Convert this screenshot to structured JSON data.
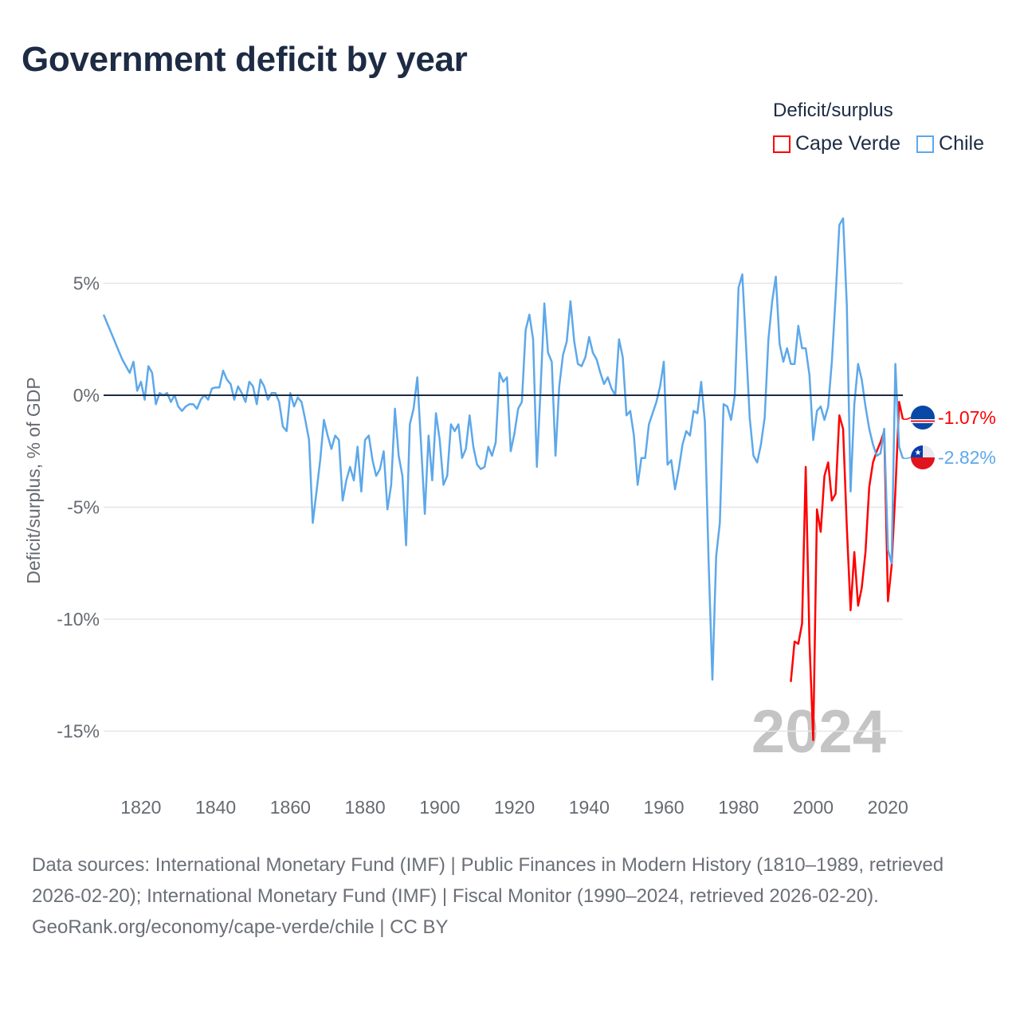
{
  "title": "Government deficit by year",
  "legend": {
    "title": "Deficit/surplus",
    "items": [
      {
        "label": "Cape Verde",
        "color": "#ff0000"
      },
      {
        "label": "Chile",
        "color": "#5da8ea"
      }
    ]
  },
  "footer": {
    "sources": "Data sources: International Monetary Fund (IMF) | Public Finances in Modern History (1810–1989, retrieved 2026-02-20); International Monetary Fund (IMF) | Fiscal Monitor (1990–2024, retrieved 2026-02-20).",
    "credit": "GeoRank.org/economy/cape-verde/chile | CC BY"
  },
  "chart_data": {
    "type": "line",
    "title": "Government deficit by year",
    "xlabel": "",
    "ylabel": "Deficit/surplus, % of GDP",
    "xlim": [
      1810,
      2024
    ],
    "ylim": [
      -17,
      8.5
    ],
    "xticks": [
      1820,
      1840,
      1860,
      1880,
      1900,
      1920,
      1940,
      1960,
      1980,
      2000,
      2020
    ],
    "yticks": [
      5,
      0,
      -5,
      -10,
      -15
    ],
    "ytick_labels": [
      "5%",
      "0%",
      "-5%",
      "-10%",
      "-15%"
    ],
    "year_watermark": "2024",
    "grid": true,
    "legend_position": "top-right",
    "series": [
      {
        "name": "Cape Verde",
        "color": "#ff0000",
        "start_year": 1994,
        "end_label": "-1.07%",
        "values": [
          -12.8,
          -11.0,
          -11.1,
          -10.2,
          -3.2,
          -11.0,
          -15.4,
          -5.1,
          -6.1,
          -3.6,
          -3.0,
          -4.7,
          -4.4,
          -0.9,
          -1.5,
          -5.9,
          -9.6,
          -7.0,
          -9.4,
          -8.6,
          -7.0,
          -4.1,
          -3.0,
          -2.5,
          -2.1,
          -1.6,
          -9.2,
          -7.6,
          -4.3,
          -0.3,
          -1.07
        ]
      },
      {
        "name": "Chile",
        "color": "#5da8ea",
        "start_year": 1810,
        "end_label": "-2.82%",
        "values": [
          3.6,
          3.2,
          2.8,
          2.4,
          2.0,
          1.6,
          1.3,
          1.0,
          1.5,
          0.2,
          0.6,
          -0.2,
          1.3,
          1.0,
          -0.4,
          0.1,
          0.0,
          0.1,
          -0.3,
          0.0,
          -0.5,
          -0.7,
          -0.5,
          -0.4,
          -0.4,
          -0.6,
          -0.2,
          0.0,
          -0.2,
          0.3,
          0.35,
          0.35,
          1.1,
          0.7,
          0.5,
          -0.2,
          0.4,
          0.1,
          -0.3,
          0.6,
          0.4,
          -0.4,
          0.7,
          0.4,
          -0.2,
          0.1,
          0.1,
          -0.3,
          -1.4,
          -1.6,
          0.1,
          -0.5,
          -0.1,
          -0.3,
          -1.1,
          -2.0,
          -5.7,
          -4.3,
          -2.9,
          -1.1,
          -1.8,
          -2.4,
          -1.8,
          -2.0,
          -4.7,
          -3.8,
          -3.2,
          -3.8,
          -2.3,
          -4.3,
          -2.0,
          -1.8,
          -2.9,
          -3.6,
          -3.3,
          -2.5,
          -5.1,
          -4.0,
          -0.6,
          -2.7,
          -3.6,
          -6.7,
          -1.3,
          -0.6,
          0.8,
          -2.2,
          -5.3,
          -1.8,
          -3.8,
          -0.8,
          -2.0,
          -4.0,
          -3.6,
          -1.3,
          -1.6,
          -1.3,
          -2.8,
          -2.4,
          -0.9,
          -2.3,
          -3.1,
          -3.3,
          -3.2,
          -2.3,
          -2.7,
          -2.1,
          1.0,
          0.6,
          0.8,
          -2.5,
          -1.7,
          -0.6,
          -0.3,
          2.9,
          3.6,
          2.5,
          -3.2,
          0.3,
          4.1,
          1.9,
          1.5,
          -2.7,
          0.4,
          1.8,
          2.4,
          4.2,
          2.4,
          1.4,
          1.3,
          1.7,
          2.6,
          1.9,
          1.6,
          1.0,
          0.5,
          0.8,
          0.3,
          0.0,
          2.5,
          1.7,
          -0.9,
          -0.7,
          -1.8,
          -4.0,
          -2.8,
          -2.8,
          -1.3,
          -0.8,
          -0.3,
          0.4,
          1.5,
          -3.1,
          -2.9,
          -4.2,
          -3.3,
          -2.2,
          -1.6,
          -1.8,
          -0.7,
          -0.8,
          0.6,
          -1.2,
          -7.5,
          -12.7,
          -7.2,
          -5.7,
          -0.4,
          -0.5,
          -1.1,
          0.0,
          4.8,
          5.4,
          2.3,
          -1.0,
          -2.7,
          -3.0,
          -2.2,
          -1.0,
          2.5,
          4.2,
          5.3,
          2.3,
          1.5,
          2.1,
          1.4,
          1.4,
          3.1,
          2.1,
          2.1,
          0.9,
          -2.0,
          -0.7,
          -0.5,
          -1.1,
          -0.5,
          1.5,
          4.4,
          7.6,
          7.9,
          4.0,
          -4.3,
          -0.4,
          1.4,
          0.7,
          -0.5,
          -1.5,
          -2.2,
          -2.7,
          -2.6,
          -1.5,
          -6.9,
          -7.5,
          1.4,
          -2.3,
          -2.82
        ]
      }
    ]
  }
}
